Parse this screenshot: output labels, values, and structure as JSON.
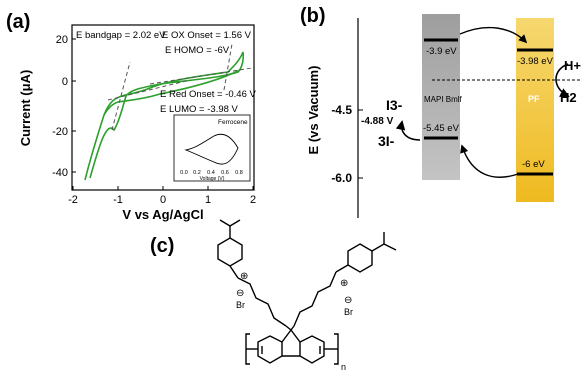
{
  "panel_a": {
    "label": "(a)",
    "ylabel": "Current (μA)",
    "xlabel": "V vs Ag/AgCl",
    "x_ticks": [
      "-2",
      "-1",
      "0",
      "1",
      "2"
    ],
    "y_ticks": [
      "20",
      "0",
      "-20",
      "-40"
    ],
    "bandgap": "E bandgap = 2.02 eV",
    "ox_onset": "E OX Onset = 1.56 V",
    "homo": "E HOMO = -6V",
    "red_onset": "E Red Onset = -0.46 V",
    "lumo": "E LUMO = -3.98 V",
    "inset_title": "Ferrocene",
    "inset_xlabel": "Voltage (V)",
    "inset_x_ticks": [
      "0.0",
      "0.2",
      "0.4",
      "0.6",
      "0.8"
    ]
  },
  "panel_b": {
    "label": "(b)",
    "ylabel": "E (vs Vacuum)",
    "y_ticks": [
      "-4.5",
      "-6.0"
    ],
    "mapi_cb": "-3.9 eV",
    "mapi_vb": "-5.45 eV",
    "mapi_label": "MAPI Bmlf",
    "pf_lumo": "-3.98 eV",
    "pf_homo": "-6 eV",
    "pf_label": "PF",
    "h_plus": "H+",
    "h2": "H2",
    "i3": "I3-",
    "i_minus": "3I-",
    "redox": "-4.88 V"
  },
  "panel_c": {
    "label": "(c)",
    "n": "n",
    "br": "Br",
    "plus": "⊕",
    "minus": "⊖"
  },
  "colors": {
    "cv": "#2ca02c",
    "mapi": "#a8a8a8",
    "pf": "#f2c53a"
  }
}
